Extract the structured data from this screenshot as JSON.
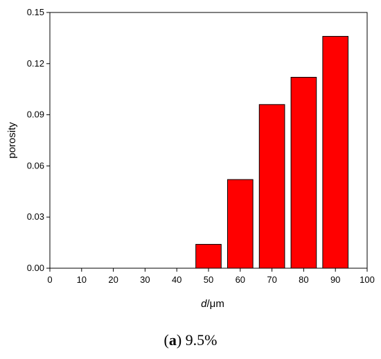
{
  "chart_data": {
    "type": "bar",
    "x": [
      50,
      60,
      70,
      80,
      90
    ],
    "values": [
      0.014,
      0.052,
      0.096,
      0.112,
      0.136
    ],
    "xlim": [
      0,
      100
    ],
    "ylim": [
      0,
      0.15
    ],
    "xticks": [
      0,
      10,
      20,
      30,
      40,
      50,
      60,
      70,
      80,
      90,
      100
    ],
    "yticks": [
      "0.00",
      "0.03",
      "0.06",
      "0.09",
      "0.12",
      "0.15"
    ],
    "bar_width": 8,
    "xlabel_italic": "d",
    "xlabel_rest": "/μm",
    "ylabel": "porosity",
    "bar_color": "#ff0000",
    "grid": false
  },
  "caption": {
    "open": "(",
    "letter": "a",
    "rest": ") 9.5%"
  }
}
